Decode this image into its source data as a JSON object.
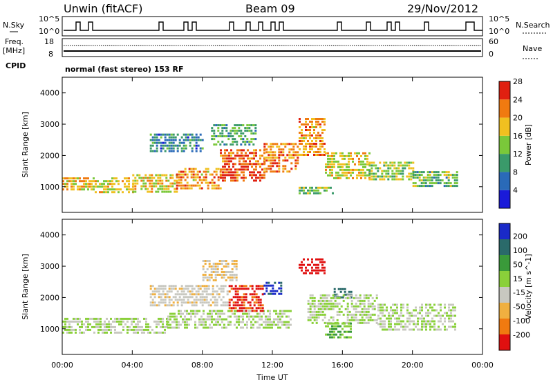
{
  "header": {
    "station": "Unwin (fitACF)",
    "beam": "Beam 09",
    "date": "29/Nov/2012"
  },
  "panels": {
    "nsky": {
      "left_label": "N.Sky",
      "right_label": "N.Search",
      "ticks_left": [
        "10^5",
        "10^0"
      ],
      "ticks_right": [
        "10^5",
        "10^0"
      ]
    },
    "freq": {
      "left_label_1": "Freq.",
      "left_label_2": "[MHz]",
      "right_label": "Nave",
      "ticks_left": [
        "18",
        "8"
      ],
      "ticks_right": [
        "60",
        "0"
      ]
    },
    "cpid": {
      "label": "CPID",
      "text": "normal (fast stereo) 153 RF"
    }
  },
  "chart_data": [
    {
      "type": "heatmap",
      "title": "",
      "xlabel": "Time UT",
      "ylabel": "Slant Range [km]",
      "x_ticks": [
        "00:00",
        "04:00",
        "08:00",
        "12:00",
        "16:00",
        "20:00",
        "00:00"
      ],
      "xlim_hours": [
        0,
        24
      ],
      "y_ticks": [
        1000,
        2000,
        3000,
        4000
      ],
      "ylim": [
        180,
        4500
      ],
      "colorbar": {
        "label": "Power [dB]",
        "ticks": [
          "4",
          "8",
          "12",
          "16",
          "20",
          "24",
          "28"
        ],
        "range": [
          0,
          30
        ],
        "colors": [
          "#1a1ad9",
          "#2a6ab8",
          "#3a9a6a",
          "#7ac83a",
          "#f0c020",
          "#f07a10",
          "#e02010"
        ]
      },
      "regions": [
        {
          "t": [
            0.0,
            1.5
          ],
          "r": [
            900,
            1300
          ],
          "level": 20
        },
        {
          "t": [
            1.5,
            4.0
          ],
          "r": [
            850,
            1300
          ],
          "level": 18
        },
        {
          "t": [
            4.0,
            6.5
          ],
          "r": [
            850,
            1400
          ],
          "level": 19
        },
        {
          "t": [
            6.5,
            9.0
          ],
          "r": [
            900,
            1600
          ],
          "level": 22
        },
        {
          "t": [
            9.0,
            11.5
          ],
          "r": [
            1200,
            2200
          ],
          "level": 26
        },
        {
          "t": [
            11.5,
            13.5
          ],
          "r": [
            1500,
            2400
          ],
          "level": 23
        },
        {
          "t": [
            13.5,
            15.0
          ],
          "r": [
            2000,
            3200
          ],
          "level": 22
        },
        {
          "t": [
            15.0,
            17.5
          ],
          "r": [
            1300,
            2100
          ],
          "level": 18
        },
        {
          "t": [
            17.5,
            20.0
          ],
          "r": [
            1200,
            1800
          ],
          "level": 16
        },
        {
          "t": [
            20.0,
            22.5
          ],
          "r": [
            1000,
            1500
          ],
          "level": 13
        },
        {
          "t": [
            5.0,
            8.0
          ],
          "r": [
            2100,
            2700
          ],
          "level": 9
        },
        {
          "t": [
            8.5,
            11.0
          ],
          "r": [
            2300,
            3000
          ],
          "level": 12
        },
        {
          "t": [
            13.5,
            15.5
          ],
          "r": [
            800,
            1000
          ],
          "level": 14
        }
      ]
    },
    {
      "type": "heatmap",
      "title": "",
      "xlabel": "Time UT",
      "ylabel": "Slant Range [km]",
      "x_ticks": [
        "00:00",
        "04:00",
        "08:00",
        "12:00",
        "16:00",
        "20:00",
        "00:00"
      ],
      "xlim_hours": [
        0,
        24
      ],
      "y_ticks": [
        1000,
        2000,
        3000,
        4000
      ],
      "ylim": [
        180,
        4500
      ],
      "colorbar": {
        "label": "Velocity [m s^-1]",
        "ticks": [
          "200",
          "100",
          "50",
          "15",
          "-15",
          "-50",
          "-100",
          "-200"
        ],
        "range": [
          -250,
          250
        ],
        "colors": [
          "#1a2ac8",
          "#2a6a6a",
          "#3a9a3a",
          "#8ad03a",
          "#c8c8c0",
          "#f0b040",
          "#f07a10",
          "#e01010"
        ]
      },
      "regions": [
        {
          "t": [
            0.0,
            6.0
          ],
          "r": [
            850,
            1350
          ],
          "level": 0
        },
        {
          "t": [
            6.0,
            13.0
          ],
          "r": [
            1000,
            1600
          ],
          "level": 0
        },
        {
          "t": [
            5.0,
            9.5
          ],
          "r": [
            1700,
            2400
          ],
          "level": -40
        },
        {
          "t": [
            9.5,
            11.5
          ],
          "r": [
            1600,
            2400
          ],
          "level": -200
        },
        {
          "t": [
            11.5,
            12.5
          ],
          "r": [
            2100,
            2500
          ],
          "level": 200
        },
        {
          "t": [
            13.5,
            15.0
          ],
          "r": [
            2800,
            3250
          ],
          "level": -220
        },
        {
          "t": [
            15.5,
            16.5
          ],
          "r": [
            2000,
            2300
          ],
          "level": 160
        },
        {
          "t": [
            14.0,
            18.0
          ],
          "r": [
            1200,
            2100
          ],
          "level": 0
        },
        {
          "t": [
            18.0,
            22.5
          ],
          "r": [
            1000,
            1800
          ],
          "level": 0
        },
        {
          "t": [
            15.0,
            16.5
          ],
          "r": [
            700,
            1200
          ],
          "level": 60
        },
        {
          "t": [
            8.0,
            10.0
          ],
          "r": [
            2500,
            3200
          ],
          "level": -60
        }
      ]
    }
  ]
}
